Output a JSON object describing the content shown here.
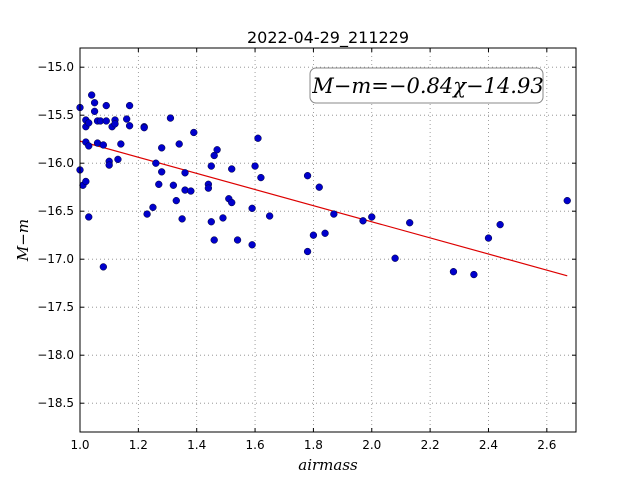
{
  "chart_data": {
    "type": "scatter",
    "title": "2022-04-29_211229",
    "xlabel": "airmass",
    "ylabel": "M−m",
    "xlim": [
      1.0,
      2.7
    ],
    "ylim": [
      -18.8,
      -14.8
    ],
    "y_inverted": true,
    "grid": true,
    "x_ticks": [
      "1.0",
      "1.2",
      "1.4",
      "1.6",
      "1.8",
      "2.0",
      "2.2",
      "2.4",
      "2.6"
    ],
    "y_ticks": [
      "−15.0",
      "−15.5",
      "−16.0",
      "−16.5",
      "−17.0",
      "−17.5",
      "−18.0",
      "−18.5"
    ],
    "fit_annotation": "M−m=−0.84χ−14.93",
    "fit_line": {
      "slope": -0.84,
      "intercept": -14.93,
      "x_start": 1.0,
      "x_end": 2.67
    },
    "colors": {
      "points": "#0000cc",
      "fit_line": "#dd0000",
      "grid": "#888888"
    },
    "points": [
      [
        1.0,
        -15.42
      ],
      [
        1.0,
        -16.07
      ],
      [
        1.01,
        -16.23
      ],
      [
        1.02,
        -16.19
      ],
      [
        1.02,
        -15.55
      ],
      [
        1.02,
        -15.62
      ],
      [
        1.02,
        -15.78
      ],
      [
        1.03,
        -15.58
      ],
      [
        1.03,
        -15.82
      ],
      [
        1.03,
        -16.56
      ],
      [
        1.04,
        -15.29
      ],
      [
        1.05,
        -15.46
      ],
      [
        1.05,
        -15.37
      ],
      [
        1.06,
        -15.79
      ],
      [
        1.06,
        -15.56
      ],
      [
        1.07,
        -15.56
      ],
      [
        1.08,
        -15.81
      ],
      [
        1.08,
        -17.08
      ],
      [
        1.09,
        -15.56
      ],
      [
        1.09,
        -15.4
      ],
      [
        1.1,
        -15.98
      ],
      [
        1.1,
        -16.02
      ],
      [
        1.11,
        -15.62
      ],
      [
        1.12,
        -15.55
      ],
      [
        1.12,
        -15.59
      ],
      [
        1.13,
        -15.96
      ],
      [
        1.14,
        -15.8
      ],
      [
        1.16,
        -15.54
      ],
      [
        1.17,
        -15.61
      ],
      [
        1.17,
        -15.4
      ],
      [
        1.22,
        -15.62
      ],
      [
        1.22,
        -15.63
      ],
      [
        1.23,
        -16.53
      ],
      [
        1.25,
        -16.46
      ],
      [
        1.26,
        -16.0
      ],
      [
        1.27,
        -16.22
      ],
      [
        1.28,
        -16.09
      ],
      [
        1.28,
        -15.84
      ],
      [
        1.31,
        -15.53
      ],
      [
        1.32,
        -16.23
      ],
      [
        1.33,
        -16.39
      ],
      [
        1.34,
        -15.8
      ],
      [
        1.35,
        -16.58
      ],
      [
        1.36,
        -16.1
      ],
      [
        1.36,
        -16.28
      ],
      [
        1.38,
        -16.29
      ],
      [
        1.39,
        -15.68
      ],
      [
        1.44,
        -16.22
      ],
      [
        1.44,
        -16.26
      ],
      [
        1.45,
        -16.03
      ],
      [
        1.45,
        -16.61
      ],
      [
        1.46,
        -16.8
      ],
      [
        1.46,
        -15.92
      ],
      [
        1.47,
        -15.86
      ],
      [
        1.49,
        -16.57
      ],
      [
        1.51,
        -16.37
      ],
      [
        1.52,
        -16.41
      ],
      [
        1.52,
        -16.06
      ],
      [
        1.54,
        -16.8
      ],
      [
        1.59,
        -16.85
      ],
      [
        1.59,
        -16.47
      ],
      [
        1.6,
        -16.03
      ],
      [
        1.61,
        -15.74
      ],
      [
        1.62,
        -16.15
      ],
      [
        1.65,
        -16.55
      ],
      [
        1.78,
        -16.13
      ],
      [
        1.78,
        -16.92
      ],
      [
        1.8,
        -16.75
      ],
      [
        1.82,
        -16.25
      ],
      [
        1.84,
        -16.73
      ],
      [
        1.87,
        -16.53
      ],
      [
        1.97,
        -16.6
      ],
      [
        2.0,
        -16.56
      ],
      [
        2.08,
        -16.99
      ],
      [
        2.13,
        -16.62
      ],
      [
        2.28,
        -17.13
      ],
      [
        2.35,
        -17.16
      ],
      [
        2.4,
        -16.78
      ],
      [
        2.44,
        -16.64
      ],
      [
        2.67,
        -16.39
      ]
    ]
  }
}
